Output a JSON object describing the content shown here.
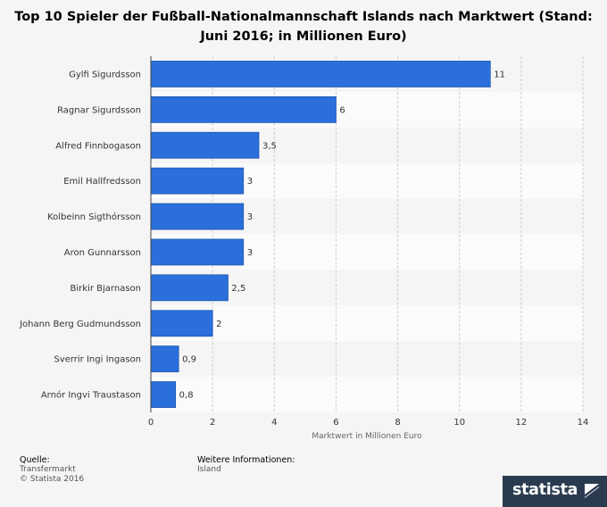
{
  "title": "Top 10 Spieler der Fußball-Nationalmannschaft Islands nach Marktwert (Stand: Juni 2016; in Millionen Euro)",
  "colors": {
    "bar": "#2a6fdb",
    "bar_stroke": "#1c56b0",
    "band_a": "#f5f5f5",
    "band_b": "#fbfbfb",
    "grid": "#cfcfcf",
    "axis": "#444444",
    "label": "#333333"
  },
  "chart_data": {
    "type": "bar",
    "orientation": "horizontal",
    "categories": [
      "Gylfi Sigurdsson",
      "Ragnar Sigurdsson",
      "Alfred Finnbogason",
      "Emil Hallfredsson",
      "Kolbeinn Sigthórsson",
      "Aron Gunnarsson",
      "Birkir Bjarnason",
      "Johann Berg Gudmundsson",
      "Sverrir Ingi Ingason",
      "Arnór Ingvi Traustason"
    ],
    "values": [
      11,
      6,
      3.5,
      3,
      3,
      3,
      2.5,
      2,
      0.9,
      0.8
    ],
    "value_labels": [
      "11",
      "6",
      "3,5",
      "3",
      "3",
      "3",
      "2,5",
      "2",
      "0,9",
      "0,8"
    ],
    "xlim": [
      0,
      14
    ],
    "xticks": [
      0,
      2,
      4,
      6,
      8,
      10,
      12,
      14
    ],
    "xlabel": "Marktwert in Millionen Euro",
    "ylabel": "",
    "grid": "vertical dashed"
  },
  "footer": {
    "source_heading": "Quelle:",
    "source_lines": [
      "Transfermarkt",
      "© Statista 2016"
    ],
    "info_heading": "Weitere Informationen:",
    "info_lines": [
      "Island"
    ]
  },
  "logo": {
    "text": "statista"
  }
}
